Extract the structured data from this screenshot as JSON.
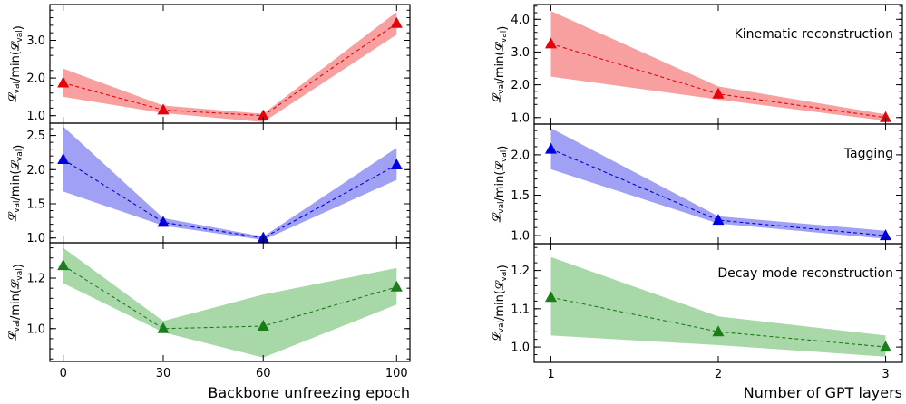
{
  "chart_data": [
    {
      "type": "line",
      "column": "left",
      "xlabel": "",
      "ylabel": "𝓛val/min(𝓛val)",
      "ylabel_main": "𝓛",
      "ylabel_sub": "val",
      "ylabel_mid": "/min(",
      "ylabel_main2": "𝓛",
      "ylabel_sub2": "val",
      "ylabel_end": ")",
      "annotation": "",
      "color": "#e8000b",
      "band_color": "#f8a0a0",
      "x": [
        0,
        30,
        60,
        100
      ],
      "xlim": [
        -4,
        104
      ],
      "ylim": [
        0.8,
        3.95
      ],
      "yticks": [
        1.0,
        2.0,
        3.0
      ],
      "ytick_labels": [
        "1.0",
        "2.0",
        "3.0"
      ],
      "series": [
        {
          "values": [
            1.87,
            1.15,
            1.0,
            3.45
          ],
          "lower": [
            1.5,
            1.07,
            0.83,
            3.15
          ],
          "upper": [
            2.25,
            1.27,
            1.05,
            3.75
          ]
        }
      ]
    },
    {
      "type": "line",
      "column": "left",
      "xlabel": "",
      "ylabel": "𝓛val/min(𝓛val)",
      "ylabel_main": "𝓛",
      "ylabel_sub": "val",
      "ylabel_mid": "/min(",
      "ylabel_main2": "𝓛",
      "ylabel_sub2": "val",
      "ylabel_end": ")",
      "annotation": "",
      "color": "#0000e0",
      "band_color": "#a0a0f4",
      "x": [
        0,
        30,
        60,
        100
      ],
      "xlim": [
        -4,
        104
      ],
      "ylim": [
        0.93,
        2.68
      ],
      "yticks": [
        1.0,
        1.5,
        2.0,
        2.5
      ],
      "ytick_labels": [
        "1.0",
        "1.5",
        "2.0",
        "2.5"
      ],
      "series": [
        {
          "values": [
            2.15,
            1.23,
            1.0,
            2.07
          ],
          "lower": [
            1.68,
            1.18,
            0.97,
            1.85
          ],
          "upper": [
            2.63,
            1.29,
            1.02,
            2.32
          ]
        }
      ]
    },
    {
      "type": "line",
      "column": "left",
      "xlabel": "Backbone unfreezing epoch",
      "ylabel": "𝓛val/min(𝓛val)",
      "ylabel_main": "𝓛",
      "ylabel_sub": "val",
      "ylabel_mid": "/min(",
      "ylabel_main2": "𝓛",
      "ylabel_sub2": "val",
      "ylabel_end": ")",
      "annotation": "",
      "color": "#1a7d1a",
      "band_color": "#a8d8a8",
      "x": [
        0,
        30,
        60,
        100
      ],
      "xlim": [
        -4,
        104
      ],
      "ylim": [
        0.87,
        1.34
      ],
      "yticks": [
        1.0,
        1.2
      ],
      "ytick_labels": [
        "1.0",
        "1.2"
      ],
      "xticks": [
        0,
        30,
        60,
        100
      ],
      "xtick_labels": [
        "0",
        "30",
        "60",
        "100"
      ],
      "series": [
        {
          "values": [
            1.25,
            1.0,
            1.01,
            1.165
          ],
          "lower": [
            1.18,
            0.985,
            0.885,
            1.095
          ],
          "upper": [
            1.32,
            1.03,
            1.135,
            1.24
          ]
        }
      ]
    },
    {
      "type": "line",
      "column": "right",
      "xlabel": "",
      "ylabel": "𝓛val/min(𝓛val)",
      "ylabel_main": "𝓛",
      "ylabel_sub": "val",
      "ylabel_mid": "/min(",
      "ylabel_main2": "𝓛",
      "ylabel_sub2": "val",
      "ylabel_end": ")",
      "annotation": "Kinematic reconstruction",
      "color": "#e8000b",
      "band_color": "#f8a0a0",
      "x": [
        1,
        2,
        3
      ],
      "xlim": [
        0.9,
        3.1
      ],
      "ylim": [
        0.8,
        4.45
      ],
      "yticks": [
        1.0,
        2.0,
        3.0,
        4.0
      ],
      "ytick_labels": [
        "1.0",
        "2.0",
        "3.0",
        "4.0"
      ],
      "series": [
        {
          "values": [
            3.25,
            1.72,
            1.0
          ],
          "lower": [
            2.25,
            1.55,
            0.9
          ],
          "upper": [
            4.25,
            1.95,
            1.1
          ]
        }
      ]
    },
    {
      "type": "line",
      "column": "right",
      "xlabel": "",
      "ylabel": "𝓛val/min(𝓛val)",
      "ylabel_main": "𝓛",
      "ylabel_sub": "val",
      "ylabel_mid": "/min(",
      "ylabel_main2": "𝓛",
      "ylabel_sub2": "val",
      "ylabel_end": ")",
      "annotation": "Tagging",
      "color": "#0000e0",
      "band_color": "#a0a0f4",
      "x": [
        1,
        2,
        3
      ],
      "xlim": [
        0.9,
        3.1
      ],
      "ylim": [
        0.9,
        2.38
      ],
      "yticks": [
        1.0,
        1.5,
        2.0
      ],
      "ytick_labels": [
        "1.0",
        "1.5",
        "2.0"
      ],
      "series": [
        {
          "values": [
            2.07,
            1.19,
            1.0
          ],
          "lower": [
            1.82,
            1.15,
            0.96
          ],
          "upper": [
            2.33,
            1.24,
            1.06
          ]
        }
      ]
    },
    {
      "type": "line",
      "column": "right",
      "xlabel": "Number of GPT layers",
      "ylabel": "𝓛val/min(𝓛val)",
      "ylabel_main": "𝓛",
      "ylabel_sub": "val",
      "ylabel_mid": "/min(",
      "ylabel_main2": "𝓛",
      "ylabel_sub2": "val",
      "ylabel_end": ")",
      "annotation": "Decay mode reconstruction",
      "color": "#1a7d1a",
      "band_color": "#a8d8a8",
      "x": [
        1,
        2,
        3
      ],
      "xlim": [
        0.9,
        3.1
      ],
      "ylim": [
        0.96,
        1.27
      ],
      "yticks": [
        1.0,
        1.1,
        1.2
      ],
      "ytick_labels": [
        "1.0",
        "1.1",
        "1.2"
      ],
      "xticks": [
        1,
        2,
        3
      ],
      "xtick_labels": [
        "1",
        "2",
        "3"
      ],
      "series": [
        {
          "values": [
            1.13,
            1.04,
            1.0
          ],
          "lower": [
            1.03,
            1.005,
            0.975
          ],
          "upper": [
            1.235,
            1.08,
            1.03
          ]
        }
      ]
    }
  ]
}
